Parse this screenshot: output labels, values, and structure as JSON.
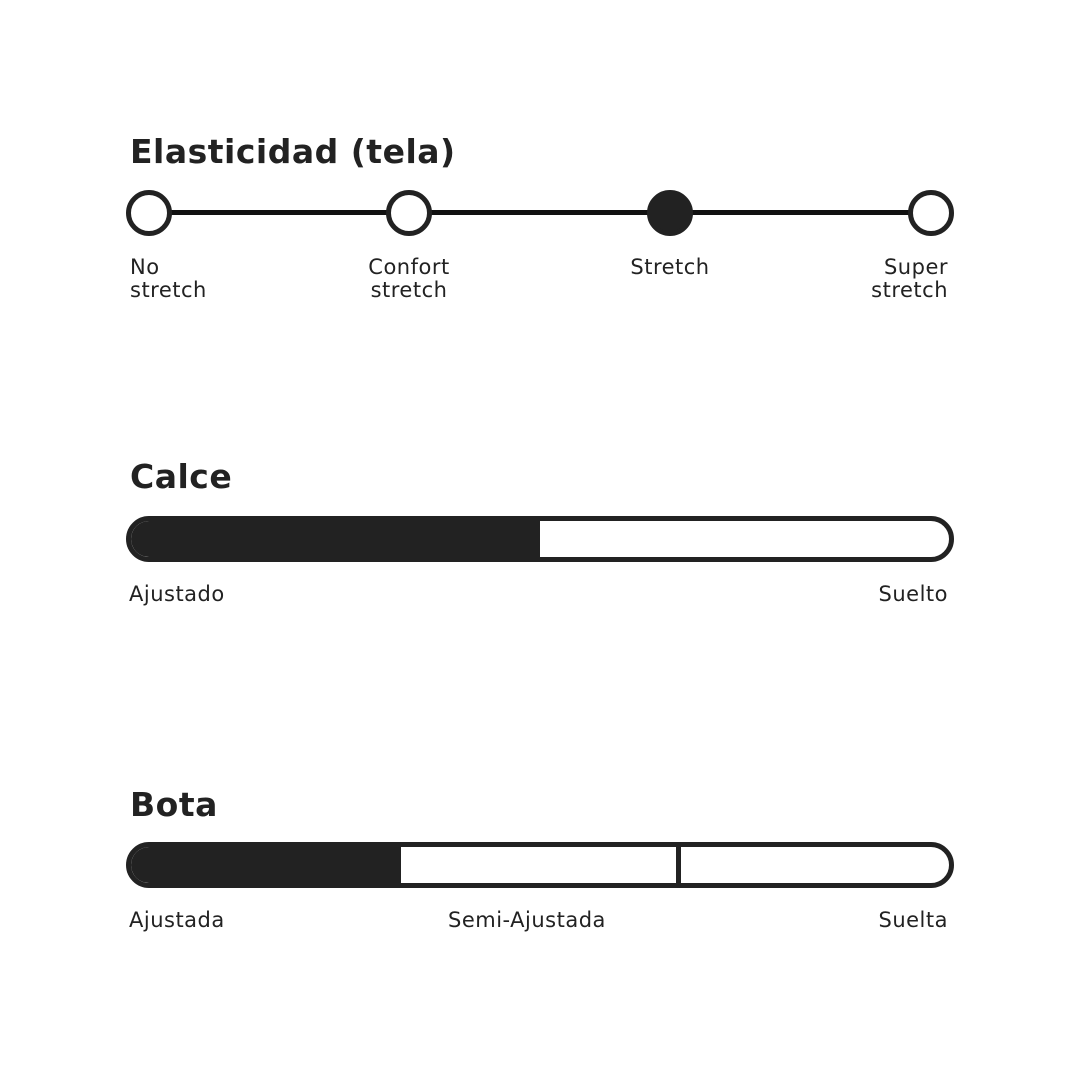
{
  "elasticity": {
    "title": "Elasticidad (tela)",
    "options": [
      {
        "line1": "No",
        "line2": "stretch"
      },
      {
        "line1": "Confort",
        "line2": "stretch"
      },
      {
        "line1": "Stretch",
        "line2": ""
      },
      {
        "line1": "Super",
        "line2": "stretch"
      }
    ],
    "selected_index": 2
  },
  "fit": {
    "title": "Calce",
    "min_label": "Ajustado",
    "max_label": "Suelto",
    "level_percent": 50
  },
  "leg": {
    "title": "Bota",
    "labels": [
      "Ajustada",
      "Semi-Ajustada",
      "Suelta"
    ],
    "segments": 3,
    "level_percent": 33
  },
  "colors": {
    "ink": "#222222",
    "background": "#ffffff"
  }
}
